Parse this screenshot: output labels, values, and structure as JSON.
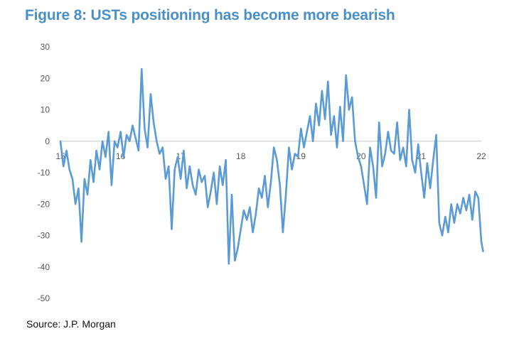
{
  "title": "Figure 8: USTs positioning has become more bearish",
  "source": "Source: J.P. Morgan",
  "chart_data": {
    "type": "line",
    "title": "Figure 8: USTs positioning has become more bearish",
    "xlabel": "",
    "ylabel": "",
    "ylim": [
      -50,
      30
    ],
    "xlim": [
      2015.0,
      2022.0
    ],
    "yticks": [
      "30",
      "20",
      "10",
      "0",
      "-10",
      "-20",
      "-30",
      "-40",
      "-50"
    ],
    "xticks": [
      "15",
      "16",
      "17",
      "18",
      "19",
      "20",
      "21",
      "22"
    ],
    "grid": false,
    "legend": "none",
    "color": "#5b9bd5",
    "series": [
      {
        "x": [
          2015.0,
          2015.05,
          2015.1,
          2015.15,
          2015.2,
          2015.25,
          2015.3,
          2015.35,
          2015.4,
          2015.45,
          2015.5,
          2015.55,
          2015.6,
          2015.65,
          2015.7,
          2015.75,
          2015.8,
          2015.85,
          2015.9,
          2015.95,
          2016.0,
          2016.05,
          2016.1,
          2016.15,
          2016.2,
          2016.25,
          2016.3,
          2016.35,
          2016.4,
          2016.45,
          2016.5,
          2016.55,
          2016.6,
          2016.65,
          2016.7,
          2016.75,
          2016.8,
          2016.85,
          2016.9,
          2016.95,
          2017.0,
          2017.05,
          2017.1,
          2017.15,
          2017.2,
          2017.25,
          2017.3,
          2017.35,
          2017.4,
          2017.45,
          2017.5,
          2017.55,
          2017.6,
          2017.65,
          2017.7,
          2017.75,
          2017.8,
          2017.85,
          2017.9,
          2017.95,
          2018.0,
          2018.05,
          2018.1,
          2018.15,
          2018.2,
          2018.25,
          2018.3,
          2018.35,
          2018.4,
          2018.45,
          2018.5,
          2018.55,
          2018.6,
          2018.65,
          2018.7,
          2018.75,
          2018.8,
          2018.85,
          2018.9,
          2018.95,
          2019.0,
          2019.05,
          2019.1,
          2019.15,
          2019.2,
          2019.25,
          2019.3,
          2019.35,
          2019.4,
          2019.45,
          2019.5,
          2019.55,
          2019.6,
          2019.65,
          2019.7,
          2019.75,
          2019.8,
          2019.85,
          2019.9,
          2019.95,
          2020.0,
          2020.05,
          2020.1,
          2020.15,
          2020.2,
          2020.25,
          2020.3,
          2020.35,
          2020.4,
          2020.45,
          2020.5,
          2020.55,
          2020.6,
          2020.65,
          2020.7,
          2020.75,
          2020.8,
          2020.85,
          2020.9,
          2020.95,
          2021.0,
          2021.05,
          2021.1,
          2021.15,
          2021.2,
          2021.25,
          2021.3,
          2021.35,
          2021.4,
          2021.45,
          2021.5,
          2021.55,
          2021.6,
          2021.65,
          2021.7,
          2021.75,
          2021.8,
          2021.85,
          2021.9,
          2021.95,
          2022.0,
          2022.03
        ],
        "values": [
          0,
          -8,
          -3,
          -9,
          -12,
          -20,
          -15,
          -32,
          -12,
          -17,
          -6,
          -13,
          -3,
          -9,
          0,
          -5,
          3,
          -14,
          0,
          -2,
          3,
          -5,
          2,
          0,
          5,
          1,
          -3,
          23,
          4,
          -2,
          15,
          6,
          0,
          -4,
          -2,
          -12,
          -8,
          -28,
          -9,
          -5,
          -12,
          -3,
          -15,
          -8,
          -14,
          -17,
          -9,
          -13,
          -11,
          -21,
          -16,
          -10,
          -20,
          -8,
          -14,
          -6,
          -39,
          -17,
          -38,
          -34,
          -28,
          -22,
          -25,
          -21,
          -29,
          -23,
          -15,
          -18,
          -11,
          -21,
          -13,
          -2,
          -6,
          -14,
          -29,
          -17,
          -2,
          -9,
          -4,
          -5,
          4,
          -2,
          3,
          8,
          0,
          12,
          5,
          16,
          7,
          19,
          2,
          8,
          -2,
          11,
          0,
          21,
          10,
          14,
          0,
          -5,
          -8,
          -14,
          -20,
          -2,
          -8,
          -18,
          6,
          -8,
          -4,
          3,
          -3,
          -4,
          6,
          -6,
          -2,
          -8,
          10,
          -6,
          -10,
          -1,
          -10,
          -18,
          -7,
          -15,
          -6,
          2,
          -26,
          -30,
          -24,
          -29,
          -20,
          -26,
          -20,
          -23,
          -18,
          -22,
          -17,
          -25,
          -16,
          -18,
          -32,
          -35
        ]
      }
    ]
  }
}
